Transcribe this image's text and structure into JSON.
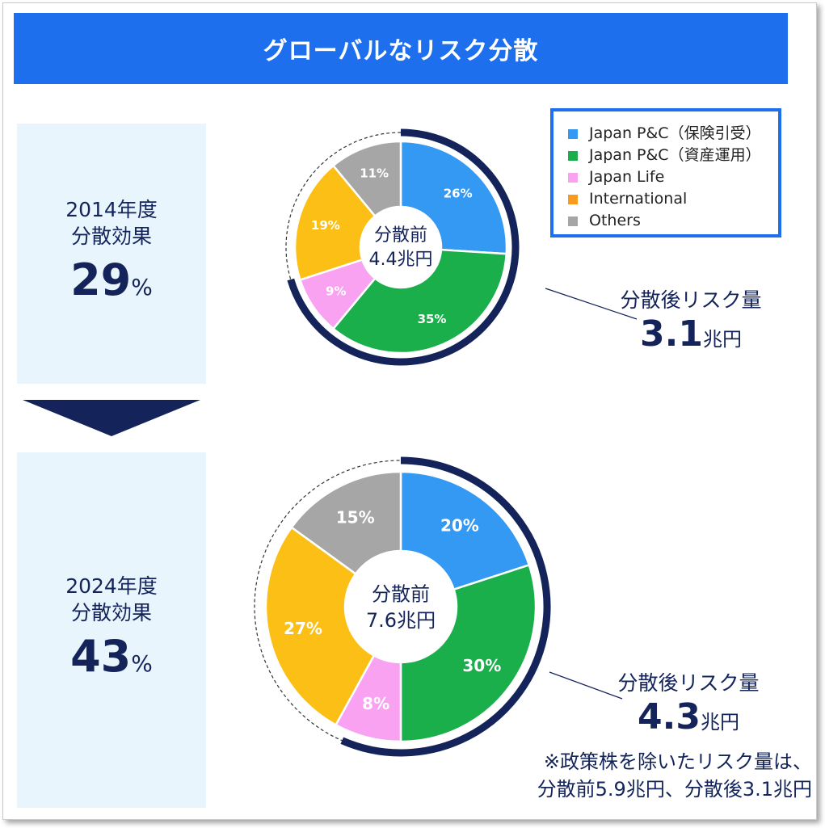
{
  "title": "グローバルなリスク分散",
  "legend": [
    {
      "label": "Japan P&C（保険引受）",
      "color": "#3399f3"
    },
    {
      "label": "Japan P&C（資産運用）",
      "color": "#1aaf4b"
    },
    {
      "label": "Japan Life",
      "color": "#f9a2f2"
    },
    {
      "label": "International",
      "color": "#f79a1d"
    },
    {
      "label": "Others",
      "color": "#a6a6a6"
    }
  ],
  "panels": [
    {
      "year_label": "2014年度",
      "effect_label": "分散効果",
      "effect_value": "29",
      "effect_unit": "%",
      "after_label": "分散後リスク量",
      "after_value": "3.1",
      "after_unit": "兆円"
    },
    {
      "year_label": "2024年度",
      "effect_label": "分散効果",
      "effect_value": "43",
      "effect_unit": "%",
      "after_label": "分散後リスク量",
      "after_value": "4.3",
      "after_unit": "兆円"
    }
  ],
  "chart_data": [
    {
      "type": "pie",
      "center_label": "分散前",
      "center_value": "4.4兆円",
      "categories": [
        "Japan P&C（保険引受）",
        "Japan P&C（資産運用）",
        "Japan Life",
        "International",
        "Others"
      ],
      "values": [
        26,
        35,
        9,
        19,
        11
      ],
      "value_labels": [
        "26%",
        "35%",
        "9%",
        "19%",
        "11%"
      ],
      "colors": [
        "#3399f3",
        "#1aaf4b",
        "#f9a2f2",
        "#fcbf16",
        "#a6a6a6"
      ],
      "before_total": 4.4,
      "after_total": 3.1
    },
    {
      "type": "pie",
      "center_label": "分散前",
      "center_value": "7.6兆円",
      "categories": [
        "Japan P&C（保険引受）",
        "Japan P&C（資産運用）",
        "Japan Life",
        "International",
        "Others"
      ],
      "values": [
        20,
        30,
        8,
        27,
        15
      ],
      "value_labels": [
        "20%",
        "30%",
        "8%",
        "27%",
        "15%"
      ],
      "colors": [
        "#3399f3",
        "#1aaf4b",
        "#f9a2f2",
        "#fcbf16",
        "#a6a6a6"
      ],
      "before_total": 7.6,
      "after_total": 4.3
    }
  ],
  "note": {
    "line1": "※政策株を除いたリスク量は、",
    "line2": "分散前5.9兆円、分散後3.1兆円"
  }
}
